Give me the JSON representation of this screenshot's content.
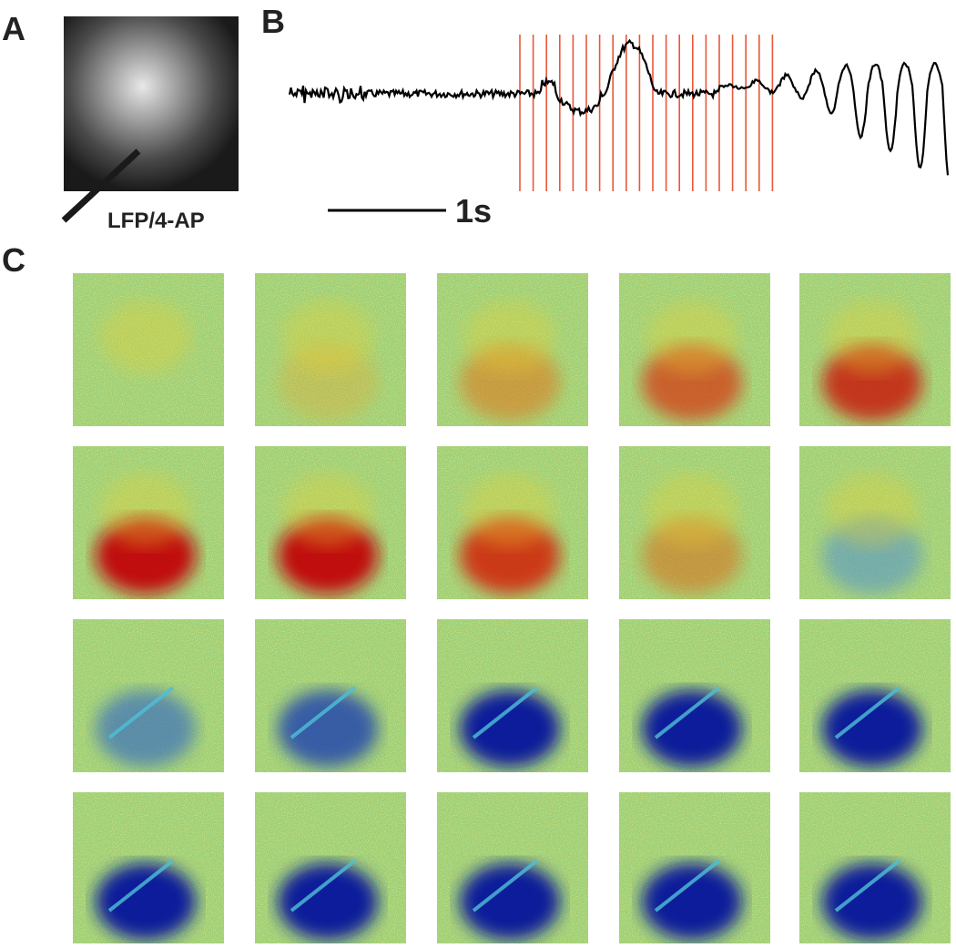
{
  "panels": [
    {
      "label": "A",
      "annotation": "LFP/4-AP"
    },
    {
      "label": "B",
      "scale_bar": "1s"
    },
    {
      "label": "C"
    }
  ]
}
